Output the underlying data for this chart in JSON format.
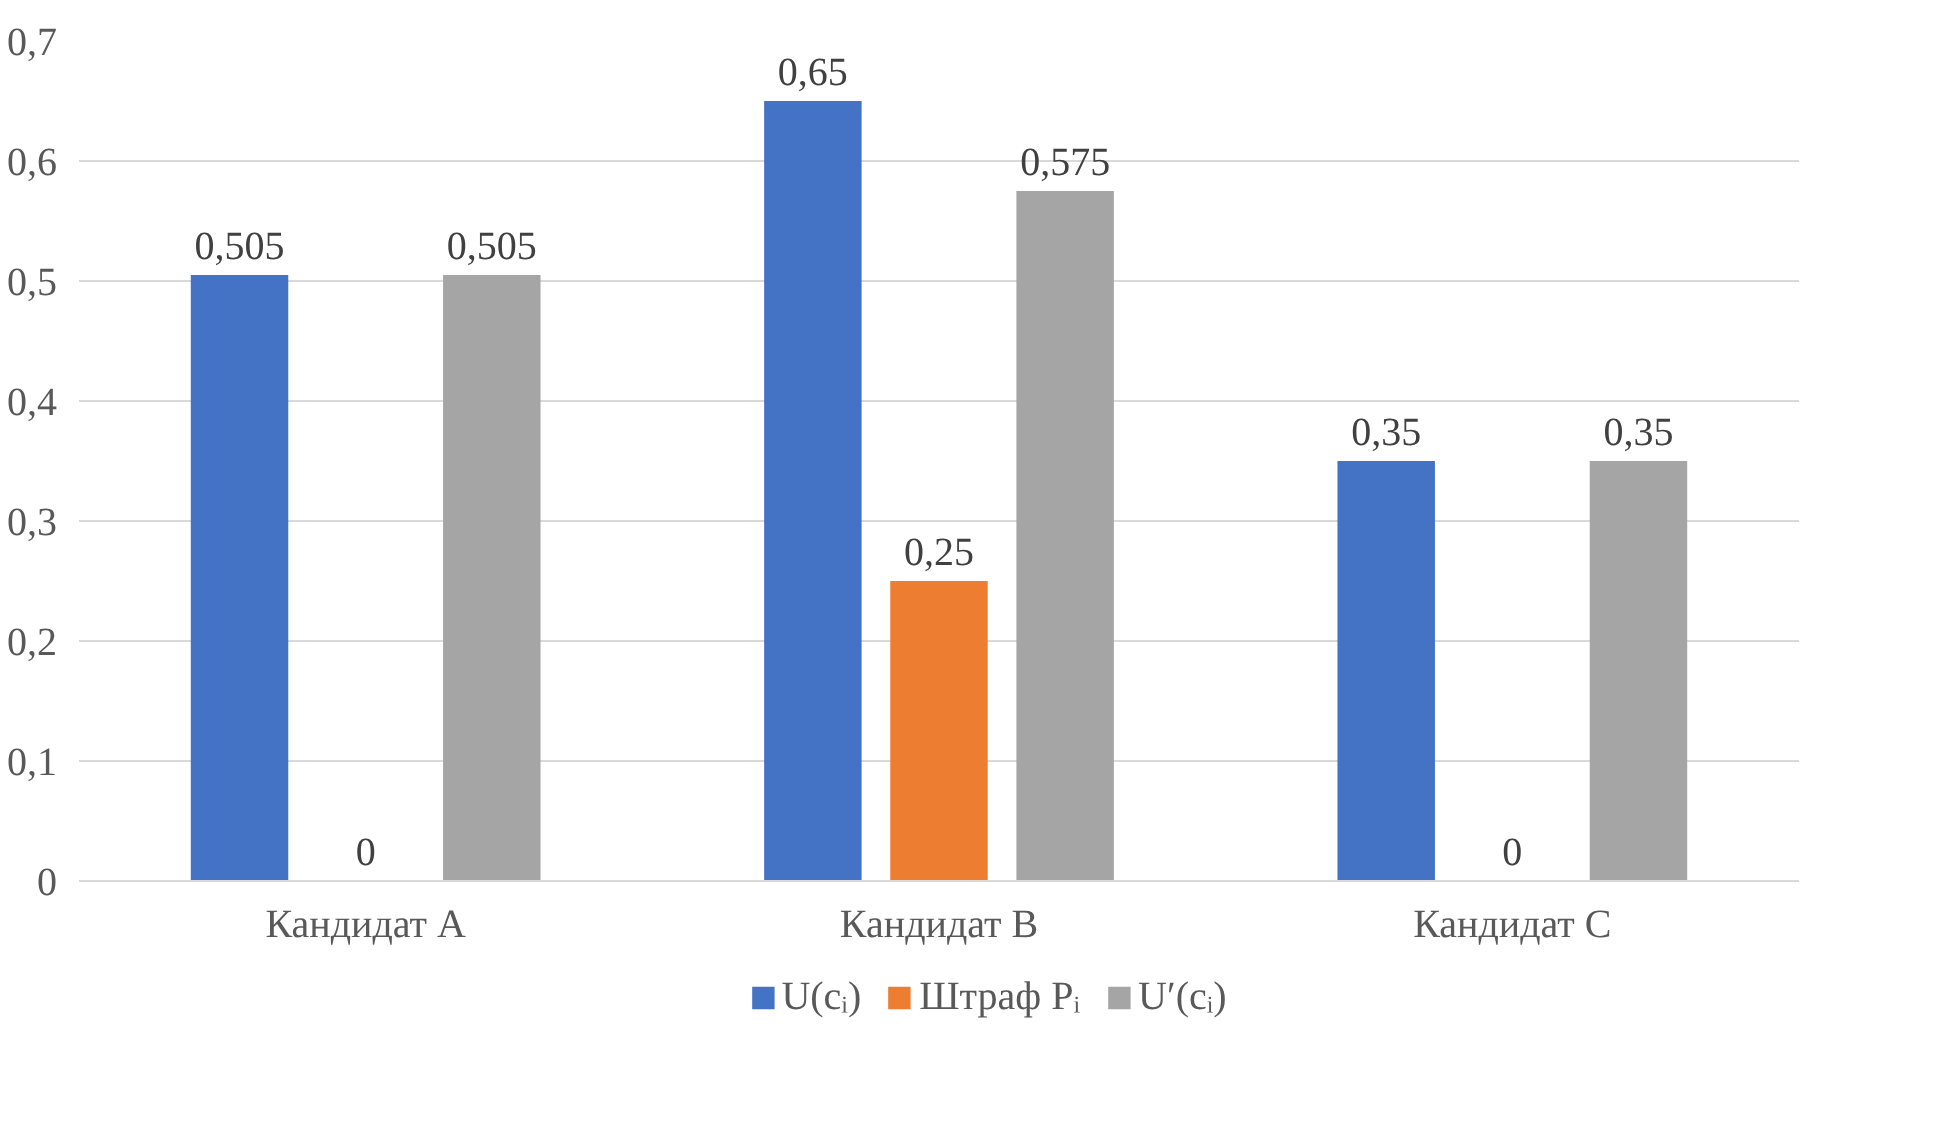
{
  "chart_data": {
    "type": "bar",
    "categories": [
      "Кандидат A",
      "Кандидат B",
      "Кандидат C"
    ],
    "series": [
      {
        "name": "U(cᵢ)",
        "color": "#4472c4",
        "values": [
          0.505,
          0.65,
          0.35
        ],
        "value_labels": [
          "0,505",
          "0,65",
          "0,35"
        ]
      },
      {
        "name": "Штраф Pᵢ",
        "color": "#ed7d31",
        "values": [
          0,
          0.25,
          0
        ],
        "value_labels": [
          "0",
          "0,25",
          "0"
        ]
      },
      {
        "name": "U′(cᵢ)",
        "color": "#a5a5a5",
        "values": [
          0.505,
          0.575,
          0.35
        ],
        "value_labels": [
          "0,505",
          "0,575",
          "0,35"
        ]
      }
    ],
    "ylim": [
      0,
      0.7
    ],
    "yticks": [
      {
        "value": 0,
        "label": "0"
      },
      {
        "value": 0.1,
        "label": "0,1"
      },
      {
        "value": 0.2,
        "label": "0,2"
      },
      {
        "value": 0.3,
        "label": "0,3"
      },
      {
        "value": 0.4,
        "label": "0,4"
      },
      {
        "value": 0.5,
        "label": "0,5"
      },
      {
        "value": 0.6,
        "label": "0,6"
      },
      {
        "value": 0.7,
        "label": "0,7"
      }
    ],
    "grid": "y",
    "legend": "bottom"
  }
}
